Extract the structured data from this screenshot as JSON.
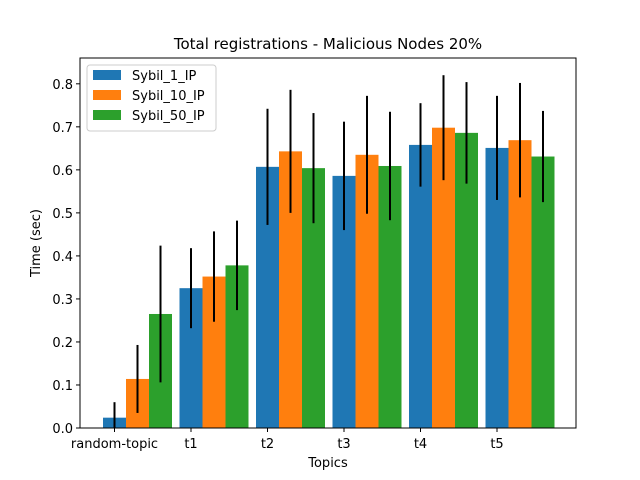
{
  "chart_data": {
    "type": "bar",
    "title": "Total registrations - Malicious Nodes 20%",
    "xlabel": "Topics",
    "ylabel": "Time (sec)",
    "ylim": [
      0,
      0.86
    ],
    "yticks": [
      "0.0",
      "0.1",
      "0.2",
      "0.3",
      "0.4",
      "0.5",
      "0.6",
      "0.7",
      "0.8"
    ],
    "categories": [
      "random-topic",
      "t1",
      "t2",
      "t3",
      "t4",
      "t5"
    ],
    "legend_position": "top-left",
    "grid": false,
    "series": [
      {
        "name": "Sybil_1_IP",
        "color": "#1f77b4",
        "values": [
          0.024,
          0.325,
          0.607,
          0.586,
          0.658,
          0.651
        ],
        "errors": [
          0.036,
          0.093,
          0.135,
          0.126,
          0.097,
          0.121
        ]
      },
      {
        "name": "Sybil_10_IP",
        "color": "#ff7f0e",
        "values": [
          0.114,
          0.352,
          0.643,
          0.635,
          0.698,
          0.669
        ],
        "errors": [
          0.079,
          0.105,
          0.143,
          0.137,
          0.122,
          0.133
        ]
      },
      {
        "name": "Sybil_50_IP",
        "color": "#2ca02c",
        "values": [
          0.265,
          0.378,
          0.604,
          0.609,
          0.686,
          0.631
        ],
        "errors": [
          0.159,
          0.104,
          0.128,
          0.126,
          0.118,
          0.106
        ]
      }
    ]
  }
}
